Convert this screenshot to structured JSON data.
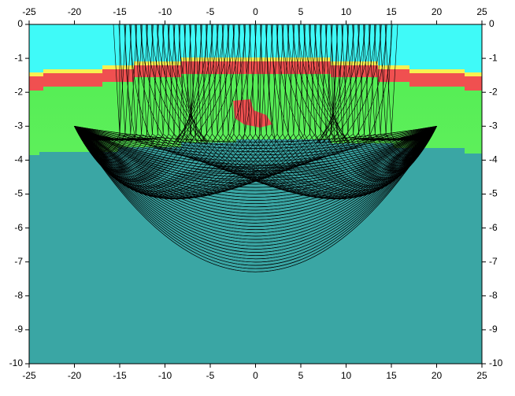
{
  "chart_data": {
    "type": "raytrace",
    "xlim": [
      -25,
      25
    ],
    "ylim": [
      -10,
      0
    ],
    "xticks": [
      -25,
      -20,
      -15,
      -10,
      -5,
      0,
      5,
      10,
      15,
      20,
      25
    ],
    "yticks": [
      0,
      -1,
      -2,
      -3,
      -4,
      -5,
      -6,
      -7,
      -8,
      -9,
      -10
    ]
  }
}
